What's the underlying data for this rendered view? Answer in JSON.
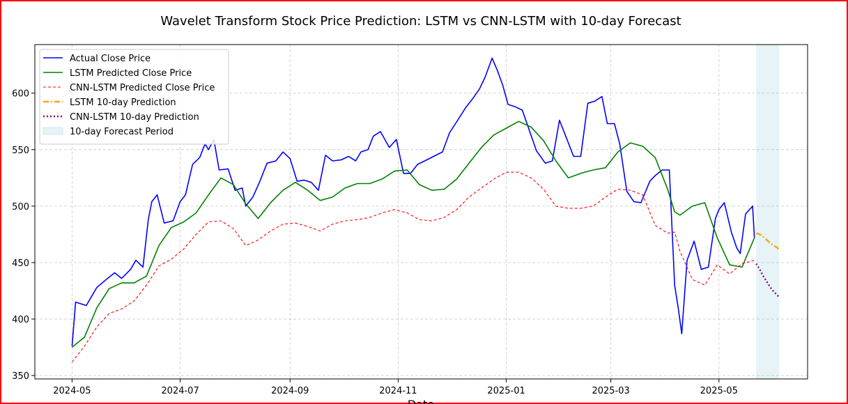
{
  "chart_data": {
    "type": "line",
    "title": "Wavelet Transform Stock Price Prediction: LSTM vs CNN-LSTM with 10-day Forecast",
    "xlabel": "Date",
    "ylabel": "",
    "xlim": [
      "2024-04-10",
      "2025-06-20"
    ],
    "ylim": [
      347,
      643
    ],
    "grid": true,
    "legend_position": "upper-left",
    "x_ticks": [
      {
        "label": "2024-05",
        "date": "2024-05-01"
      },
      {
        "label": "2024-07",
        "date": "2024-07-01"
      },
      {
        "label": "2024-09",
        "date": "2024-09-01"
      },
      {
        "label": "2024-11",
        "date": "2024-11-01"
      },
      {
        "label": "2025-01",
        "date": "2025-01-01"
      },
      {
        "label": "2025-03",
        "date": "2025-03-01"
      },
      {
        "label": "2025-05",
        "date": "2025-05-01"
      }
    ],
    "y_ticks": [
      {
        "label": "350",
        "value": 350
      },
      {
        "label": "400",
        "value": 400
      },
      {
        "label": "450",
        "value": 450
      },
      {
        "label": "500",
        "value": 500
      },
      {
        "label": "550",
        "value": 550
      },
      {
        "label": "600",
        "value": 600
      }
    ],
    "forecast_span": {
      "name": "10-day Forecast Period",
      "start": "2025-05-22",
      "end": "2025-06-04",
      "color": "#add8e6"
    },
    "series": [
      {
        "name": "Actual Close Price",
        "color": "#0000ff",
        "style": "solid",
        "x": [
          "2024-05-01",
          "2024-05-03",
          "2024-05-09",
          "2024-05-15",
          "2024-05-21",
          "2024-05-25",
          "2024-05-29",
          "2024-06-03",
          "2024-06-06",
          "2024-06-10",
          "2024-06-13",
          "2024-06-15",
          "2024-06-18",
          "2024-06-22",
          "2024-06-27",
          "2024-07-01",
          "2024-07-04",
          "2024-07-08",
          "2024-07-12",
          "2024-07-15",
          "2024-07-17",
          "2024-07-20",
          "2024-07-23",
          "2024-07-28",
          "2024-08-01",
          "2024-08-05",
          "2024-08-07",
          "2024-08-11",
          "2024-08-15",
          "2024-08-19",
          "2024-08-24",
          "2024-08-28",
          "2024-09-01",
          "2024-09-05",
          "2024-09-09",
          "2024-09-13",
          "2024-09-17",
          "2024-09-21",
          "2024-09-25",
          "2024-09-30",
          "2024-10-04",
          "2024-10-08",
          "2024-10-11",
          "2024-10-15",
          "2024-10-18",
          "2024-10-22",
          "2024-10-27",
          "2024-10-31",
          "2024-11-04",
          "2024-11-08",
          "2024-11-12",
          "2024-11-16",
          "2024-11-21",
          "2024-11-26",
          "2024-11-30",
          "2024-12-05",
          "2024-12-09",
          "2024-12-13",
          "2024-12-17",
          "2024-12-20",
          "2024-12-24",
          "2024-12-27",
          "2024-12-30",
          "2025-01-02",
          "2025-01-06",
          "2025-01-10",
          "2025-01-14",
          "2025-01-18",
          "2025-01-23",
          "2025-01-27",
          "2025-01-31",
          "2025-02-04",
          "2025-02-08",
          "2025-02-12",
          "2025-02-16",
          "2025-02-20",
          "2025-02-24",
          "2025-02-27",
          "2025-03-03",
          "2025-03-06",
          "2025-03-10",
          "2025-03-14",
          "2025-03-18",
          "2025-03-23",
          "2025-03-26",
          "2025-03-30",
          "2025-04-03",
          "2025-04-06",
          "2025-04-08",
          "2025-04-10",
          "2025-04-13",
          "2025-04-17",
          "2025-04-21",
          "2025-04-25",
          "2025-04-29",
          "2025-05-01",
          "2025-05-04",
          "2025-05-08",
          "2025-05-11",
          "2025-05-13",
          "2025-05-16",
          "2025-05-20",
          "2025-05-21"
        ],
        "values": [
          376,
          415,
          412,
          428,
          436,
          441,
          436,
          444,
          452,
          446,
          488,
          504,
          510,
          485,
          487,
          504,
          510,
          537,
          543,
          555,
          550,
          559,
          532,
          533,
          514,
          516,
          500,
          508,
          522,
          538,
          540,
          548,
          542,
          522,
          523,
          521,
          514,
          545,
          540,
          541,
          544,
          540,
          548,
          550,
          562,
          566,
          552,
          559,
          529,
          529,
          537,
          540,
          544,
          548,
          565,
          577,
          587,
          595,
          604,
          614,
          631,
          620,
          607,
          590,
          588,
          585,
          567,
          549,
          538,
          540,
          576,
          560,
          544,
          544,
          591,
          593,
          597,
          573,
          573,
          555,
          513,
          504,
          503,
          522,
          527,
          532,
          532,
          430,
          410,
          387,
          452,
          469,
          444,
          446,
          489,
          497,
          503,
          477,
          463,
          458,
          493,
          500,
          472
        ]
      },
      {
        "name": "LSTM Predicted Close Price",
        "color": "#008000",
        "style": "solid",
        "x": [
          "2024-05-01",
          "2024-05-08",
          "2024-05-15",
          "2024-05-22",
          "2024-05-29",
          "2024-06-05",
          "2024-06-12",
          "2024-06-19",
          "2024-06-26",
          "2024-07-03",
          "2024-07-10",
          "2024-07-17",
          "2024-07-24",
          "2024-07-31",
          "2024-08-07",
          "2024-08-14",
          "2024-08-21",
          "2024-08-28",
          "2024-09-04",
          "2024-09-11",
          "2024-09-18",
          "2024-09-25",
          "2024-10-02",
          "2024-10-09",
          "2024-10-16",
          "2024-10-23",
          "2024-10-30",
          "2024-11-06",
          "2024-11-13",
          "2024-11-20",
          "2024-11-27",
          "2024-12-04",
          "2024-12-11",
          "2024-12-18",
          "2024-12-25",
          "2025-01-01",
          "2025-01-08",
          "2025-01-15",
          "2025-01-22",
          "2025-01-29",
          "2025-02-05",
          "2025-02-12",
          "2025-02-19",
          "2025-02-26",
          "2025-03-05",
          "2025-03-12",
          "2025-03-19",
          "2025-03-26",
          "2025-04-02",
          "2025-04-06",
          "2025-04-09",
          "2025-04-16",
          "2025-04-23",
          "2025-04-30",
          "2025-05-07",
          "2025-05-14",
          "2025-05-21"
        ],
        "values": [
          375,
          384,
          410,
          427,
          432,
          432,
          438,
          465,
          481,
          486,
          494,
          510,
          525,
          519,
          502,
          489,
          503,
          514,
          521,
          514,
          505,
          508,
          516,
          520,
          520,
          524,
          531,
          532,
          519,
          514,
          515,
          524,
          538,
          552,
          563,
          569,
          575,
          570,
          558,
          540,
          525,
          529,
          532,
          534,
          548,
          556,
          553,
          543,
          515,
          495,
          492,
          500,
          503,
          472,
          448,
          446,
          472
        ]
      },
      {
        "name": "CNN-LSTM Predicted Close Price",
        "color": "#ff0000",
        "style": "dashed",
        "x": [
          "2024-05-01",
          "2024-05-08",
          "2024-05-15",
          "2024-05-22",
          "2024-05-29",
          "2024-06-05",
          "2024-06-12",
          "2024-06-19",
          "2024-06-26",
          "2024-07-03",
          "2024-07-10",
          "2024-07-17",
          "2024-07-24",
          "2024-07-31",
          "2024-08-07",
          "2024-08-14",
          "2024-08-21",
          "2024-08-28",
          "2024-09-04",
          "2024-09-11",
          "2024-09-18",
          "2024-09-25",
          "2024-10-02",
          "2024-10-09",
          "2024-10-16",
          "2024-10-23",
          "2024-10-30",
          "2024-11-06",
          "2024-11-13",
          "2024-11-20",
          "2024-11-27",
          "2024-12-04",
          "2024-12-11",
          "2024-12-18",
          "2024-12-25",
          "2025-01-01",
          "2025-01-08",
          "2025-01-15",
          "2025-01-22",
          "2025-01-29",
          "2025-02-05",
          "2025-02-12",
          "2025-02-19",
          "2025-02-26",
          "2025-03-05",
          "2025-03-12",
          "2025-03-19",
          "2025-03-26",
          "2025-04-02",
          "2025-04-06",
          "2025-04-09",
          "2025-04-16",
          "2025-04-23",
          "2025-04-30",
          "2025-05-07",
          "2025-05-14",
          "2025-05-21"
        ],
        "values": [
          362,
          376,
          393,
          405,
          409,
          416,
          430,
          447,
          453,
          462,
          475,
          486,
          487,
          480,
          465,
          470,
          478,
          484,
          485,
          482,
          478,
          484,
          487,
          488,
          490,
          494,
          497,
          494,
          488,
          487,
          490,
          497,
          508,
          516,
          524,
          530,
          530,
          525,
          515,
          500,
          498,
          498,
          500,
          508,
          515,
          514,
          510,
          483,
          476,
          477,
          460,
          435,
          430,
          448,
          440,
          449,
          452
        ]
      },
      {
        "name": "LSTM 10-day Prediction",
        "color": "#ffa500",
        "style": "dashdot",
        "x": [
          "2025-05-22",
          "2025-05-24",
          "2025-05-26",
          "2025-05-28",
          "2025-05-30",
          "2025-06-01",
          "2025-06-03",
          "2025-06-04"
        ],
        "values": [
          476,
          475,
          473,
          470,
          467,
          465,
          463,
          461
        ]
      },
      {
        "name": "CNN-LSTM 10-day Prediction",
        "color": "#800080",
        "style": "dotted",
        "x": [
          "2025-05-22",
          "2025-05-24",
          "2025-05-26",
          "2025-05-28",
          "2025-05-30",
          "2025-06-01",
          "2025-06-03",
          "2025-06-04"
        ],
        "values": [
          449,
          444,
          438,
          433,
          428,
          424,
          421,
          419
        ]
      }
    ]
  }
}
